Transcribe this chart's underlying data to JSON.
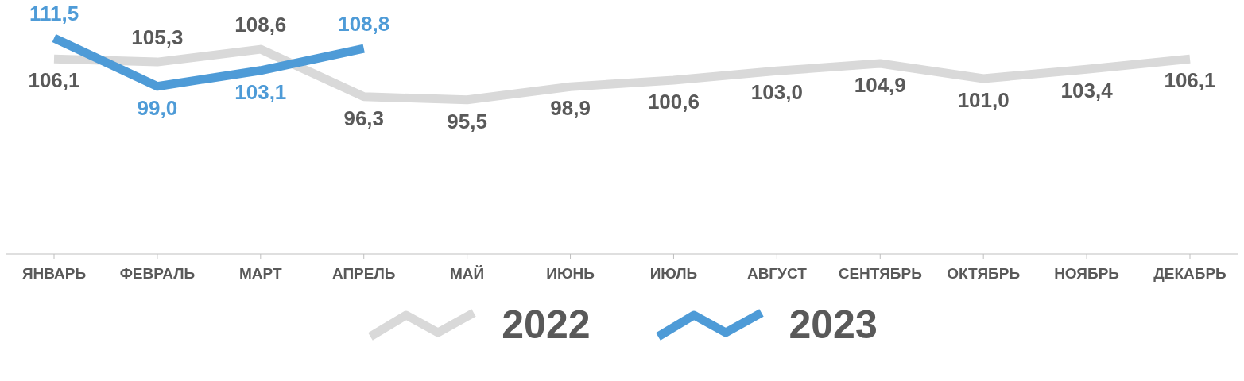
{
  "chart_data": {
    "type": "line",
    "categories": [
      "ЯНВАРЬ",
      "ФЕВРАЛЬ",
      "МАРТ",
      "АПРЕЛЬ",
      "МАЙ",
      "ИЮНЬ",
      "ИЮЛЬ",
      "АВГУСТ",
      "СЕНТЯБРЬ",
      "ОКТЯБРЬ",
      "НОЯБРЬ",
      "ДЕКАБРЬ"
    ],
    "series": [
      {
        "name": "2022",
        "color": "#d9d9d9",
        "values": [
          106.1,
          105.3,
          108.6,
          96.3,
          95.5,
          98.9,
          100.6,
          103.0,
          104.9,
          101.0,
          103.4,
          106.1
        ],
        "value_labels": [
          "106,1",
          "105,3",
          "108,6",
          "96,3",
          "95,5",
          "98,9",
          "100,6",
          "103,0",
          "104,9",
          "101,0",
          "103,4",
          "106,1"
        ]
      },
      {
        "name": "2023",
        "color": "#4e9bd7",
        "values": [
          111.5,
          99.0,
          103.1,
          108.8,
          null,
          null,
          null,
          null,
          null,
          null,
          null,
          null
        ],
        "value_labels": [
          "111,5",
          "99,0",
          "103,1",
          "108,8",
          null,
          null,
          null,
          null,
          null,
          null,
          null,
          null
        ]
      }
    ],
    "legend": "bottom",
    "marker": "none",
    "line_style": "solid"
  }
}
